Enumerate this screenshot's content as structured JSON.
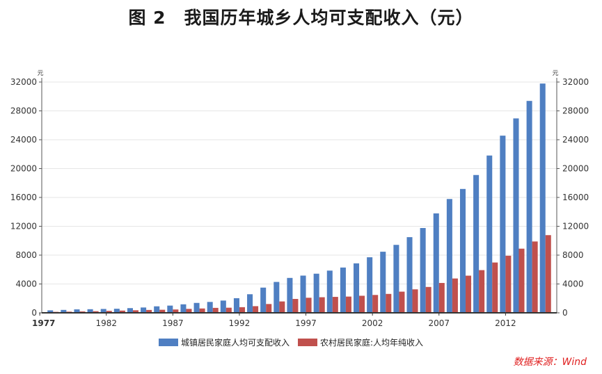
{
  "title_num": "图 2",
  "title_text": "我国历年城乡人均可支配收入（元）",
  "source": "数据来源：Wind",
  "colors": {
    "urban": "#4f7fc2",
    "rural": "#c0504d"
  },
  "chart_data": {
    "type": "bar",
    "title": "我国历年城乡人均可支配收入（元）",
    "unit_left": "元",
    "unit_right": "元",
    "ylim": [
      0,
      32000
    ],
    "yticks": [
      0,
      4000,
      8000,
      12000,
      16000,
      20000,
      24000,
      28000,
      32000
    ],
    "xtick_labels": [
      "1977",
      "1982",
      "1987",
      "1992",
      "1997",
      "2002",
      "2007",
      "2012"
    ],
    "categories": [
      "1978",
      "1979",
      "1980",
      "1981",
      "1982",
      "1983",
      "1984",
      "1985",
      "1986",
      "1987",
      "1988",
      "1989",
      "1990",
      "1991",
      "1992",
      "1993",
      "1994",
      "1995",
      "1996",
      "1997",
      "1998",
      "1999",
      "2000",
      "2001",
      "2002",
      "2003",
      "2004",
      "2005",
      "2006",
      "2007",
      "2008",
      "2009",
      "2010",
      "2011",
      "2012",
      "2013",
      "2014",
      "2015"
    ],
    "series": [
      {
        "name": "城镇居民家庭人均可支配收入",
        "color": "#4f7fc2",
        "values": [
          343,
          405,
          478,
          500,
          535,
          565,
          652,
          739,
          900,
          1002,
          1180,
          1374,
          1510,
          1700,
          2027,
          2577,
          3496,
          4283,
          4839,
          5160,
          5425,
          5854,
          6280,
          6860,
          7703,
          8472,
          9422,
          10493,
          11759,
          13786,
          15781,
          17175,
          19109,
          21810,
          24565,
          26955,
          29381,
          31790
        ]
      },
      {
        "name": "农村居民家庭:人均年纯收入",
        "color": "#c0504d",
        "values": [
          134,
          160,
          191,
          223,
          270,
          310,
          355,
          398,
          424,
          463,
          545,
          602,
          686,
          709,
          784,
          922,
          1221,
          1578,
          1926,
          2090,
          2162,
          2210,
          2253,
          2366,
          2476,
          2622,
          2936,
          3255,
          3587,
          4140,
          4761,
          5153,
          5919,
          6977,
          7917,
          8896,
          9892,
          10772
        ]
      }
    ]
  }
}
